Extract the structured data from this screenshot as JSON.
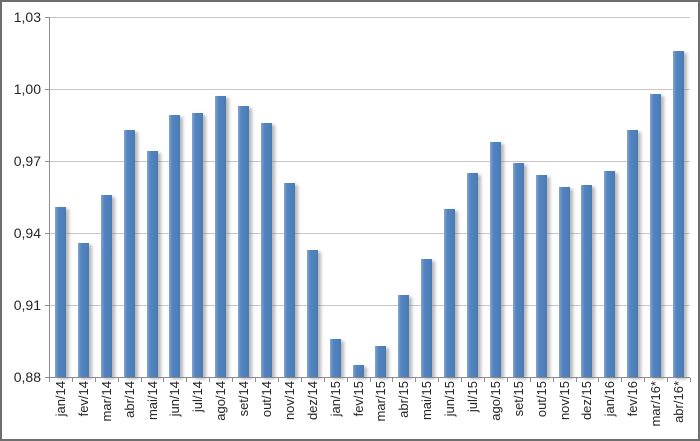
{
  "chart_data": {
    "type": "bar",
    "title": "",
    "categories": [
      "jan/14",
      "fev/14",
      "mar/14",
      "abr/14",
      "mai/14",
      "jun/14",
      "jul/14",
      "ago/14",
      "set/14",
      "out/14",
      "nov/14",
      "dez/14",
      "jan/15",
      "fev/15",
      "mar/15",
      "abr/15",
      "mai/15",
      "jun/15",
      "jul/15",
      "ago/15",
      "set/15",
      "out/15",
      "nov/15",
      "dez/15",
      "jan/16",
      "fev/16",
      "mar/16*",
      "abr/16*"
    ],
    "values": [
      0.951,
      0.936,
      0.956,
      0.983,
      0.974,
      0.989,
      0.99,
      0.997,
      0.993,
      0.986,
      0.961,
      0.933,
      0.896,
      0.885,
      0.893,
      0.914,
      0.929,
      0.95,
      0.965,
      0.978,
      0.969,
      0.964,
      0.959,
      0.96,
      0.966,
      0.983,
      0.998,
      1.016
    ],
    "xlabel": "",
    "ylabel": "",
    "ylim": [
      0.88,
      1.03
    ],
    "y_tick_step": 0.03,
    "y_tick_labels": [
      "0,88",
      "0,91",
      "0,94",
      "0,97",
      "1,00",
      "1,03"
    ],
    "grid": true,
    "legend": "none",
    "bar_color": "#4f81bd",
    "gridline_color": "#c6c6c6",
    "axis_color": "#8e8e8e",
    "text_color": "#262626"
  }
}
